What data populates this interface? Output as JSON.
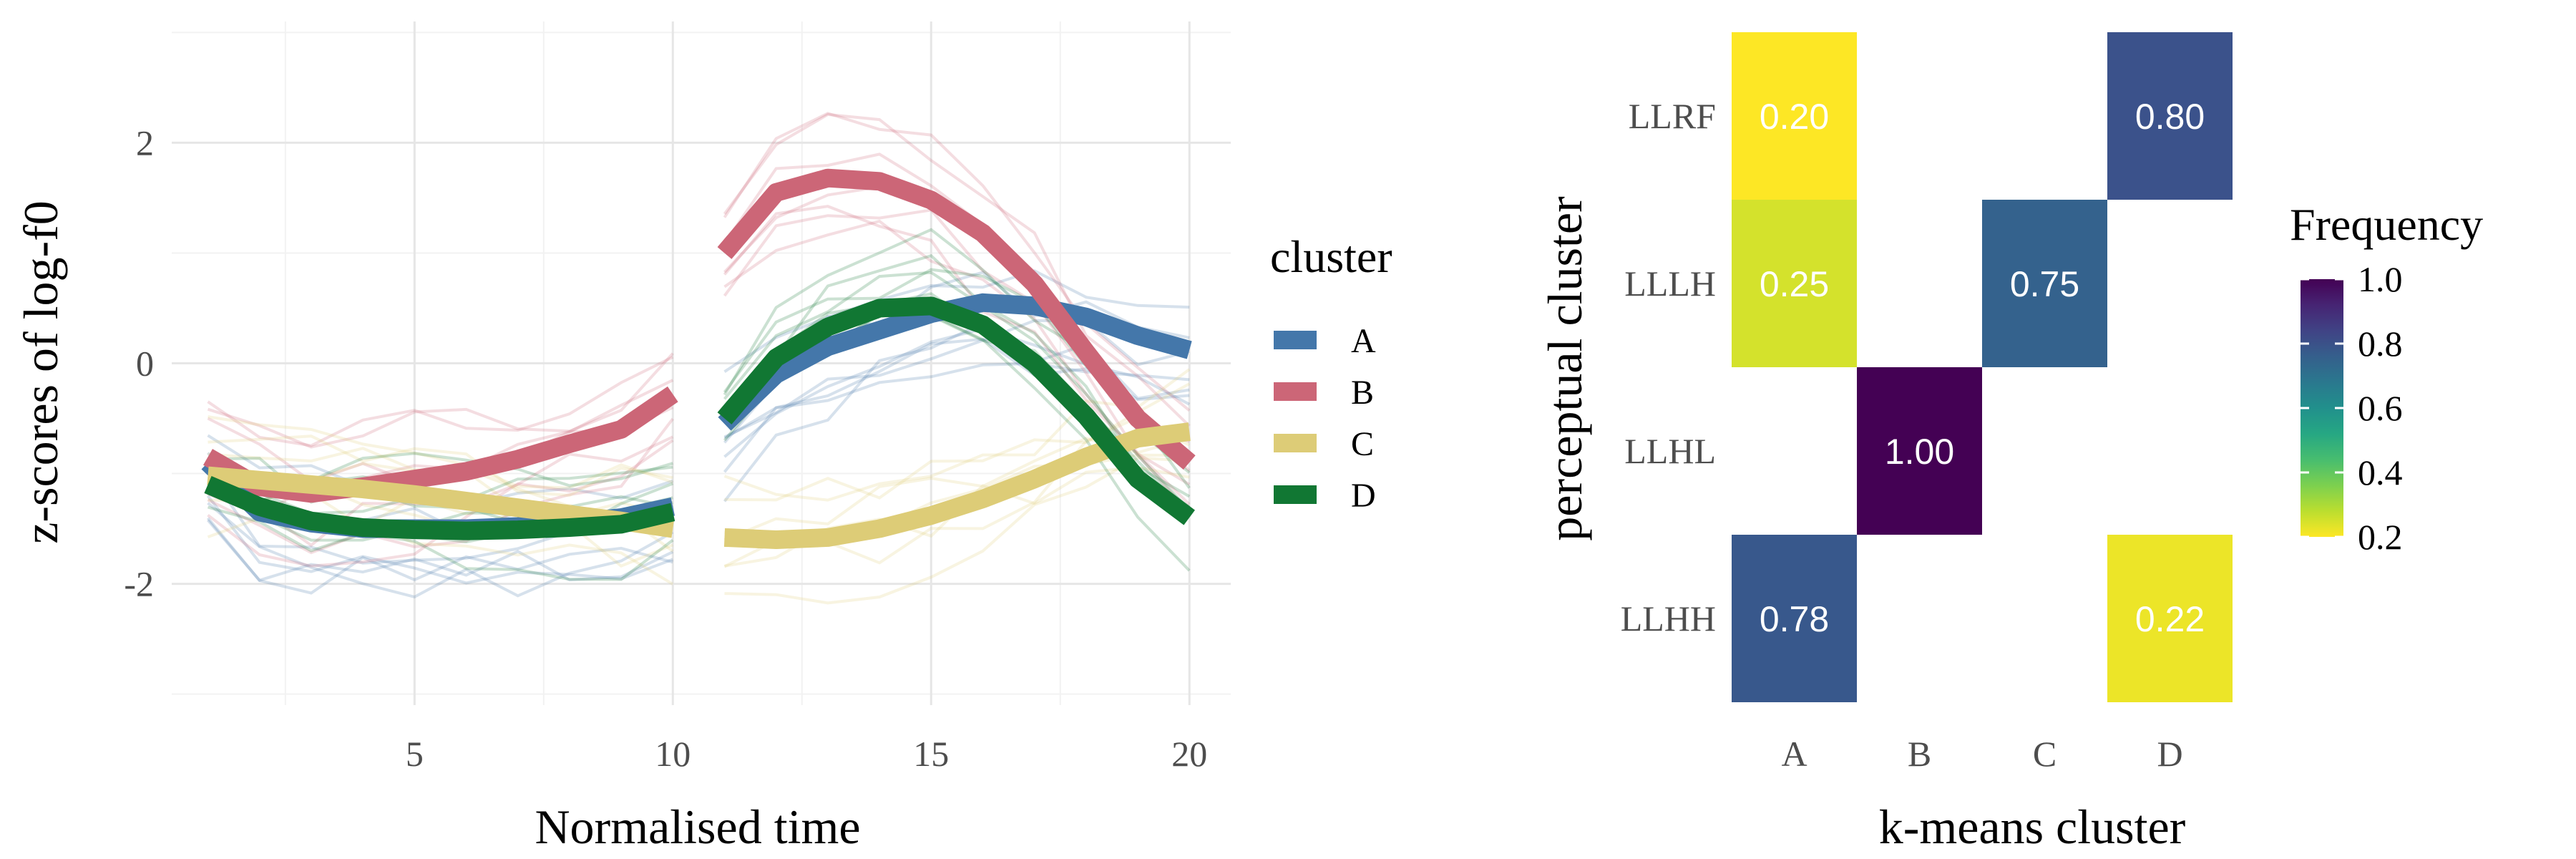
{
  "chart_data": [
    {
      "type": "line",
      "xlabel": "Normalised time",
      "ylabel": "z-scores of log-f0",
      "xlim": [
        0.3,
        20.8
      ],
      "ylim": [
        -3.1,
        3.1
      ],
      "x_ticks": [
        5,
        10,
        15,
        20
      ],
      "y_ticks": [
        -2,
        0,
        2
      ],
      "y_tick_labels": [
        "-2",
        "0",
        "2"
      ],
      "grid": true,
      "legend": {
        "title": "cluster",
        "position": "right"
      },
      "segments": [
        [
          1,
          10
        ],
        [
          11,
          20
        ]
      ],
      "series": [
        {
          "name": "A",
          "color": "#4477AA",
          "x": [
            1,
            2,
            3,
            4,
            5,
            6,
            7,
            8,
            9,
            10,
            11,
            12,
            13,
            14,
            15,
            16,
            17,
            18,
            19,
            20
          ],
          "values": [
            -0.9,
            -1.35,
            -1.45,
            -1.5,
            -1.5,
            -1.5,
            -1.48,
            -1.45,
            -1.4,
            -1.3,
            -0.55,
            -0.1,
            0.15,
            0.3,
            0.45,
            0.55,
            0.52,
            0.42,
            0.25,
            0.12
          ]
        },
        {
          "name": "B",
          "color": "#CC6677",
          "x": [
            1,
            2,
            3,
            4,
            5,
            6,
            7,
            8,
            9,
            10,
            11,
            12,
            13,
            14,
            15,
            16,
            17,
            18,
            19,
            20
          ],
          "values": [
            -0.85,
            -1.12,
            -1.18,
            -1.12,
            -1.05,
            -0.98,
            -0.87,
            -0.73,
            -0.6,
            -0.28,
            1.0,
            1.55,
            1.68,
            1.65,
            1.48,
            1.18,
            0.72,
            0.1,
            -0.5,
            -0.9
          ]
        },
        {
          "name": "C",
          "color": "#DDCC77",
          "x": [
            1,
            2,
            3,
            4,
            5,
            6,
            7,
            8,
            9,
            10,
            11,
            12,
            13,
            14,
            15,
            16,
            17,
            18,
            19,
            20
          ],
          "values": [
            -1.02,
            -1.06,
            -1.1,
            -1.14,
            -1.19,
            -1.25,
            -1.31,
            -1.37,
            -1.43,
            -1.5,
            -1.58,
            -1.6,
            -1.58,
            -1.5,
            -1.38,
            -1.23,
            -1.05,
            -0.85,
            -0.68,
            -0.62
          ]
        },
        {
          "name": "D",
          "color": "#117733",
          "x": [
            1,
            2,
            3,
            4,
            5,
            6,
            7,
            8,
            9,
            10,
            11,
            12,
            13,
            14,
            15,
            16,
            17,
            18,
            19,
            20
          ],
          "values": [
            -1.1,
            -1.3,
            -1.43,
            -1.49,
            -1.51,
            -1.52,
            -1.51,
            -1.49,
            -1.46,
            -1.35,
            -0.5,
            0.05,
            0.33,
            0.5,
            0.52,
            0.35,
            0.0,
            -0.48,
            -1.05,
            -1.4
          ]
        }
      ]
    },
    {
      "type": "heatmap",
      "xlabel": "k-means cluster",
      "ylabel": "perceptual cluster",
      "x_categories": [
        "A",
        "B",
        "C",
        "D"
      ],
      "y_categories": [
        "LLRF",
        "LLLH",
        "LLHL",
        "LLHH"
      ],
      "cells": [
        {
          "x": "A",
          "y": "LLRF",
          "value": 0.2,
          "label": "0.20"
        },
        {
          "x": "D",
          "y": "LLRF",
          "value": 0.8,
          "label": "0.80"
        },
        {
          "x": "A",
          "y": "LLLH",
          "value": 0.25,
          "label": "0.25"
        },
        {
          "x": "C",
          "y": "LLLH",
          "value": 0.75,
          "label": "0.75"
        },
        {
          "x": "B",
          "y": "LLHL",
          "value": 1.0,
          "label": "1.00"
        },
        {
          "x": "A",
          "y": "LLHH",
          "value": 0.78,
          "label": "0.78"
        },
        {
          "x": "D",
          "y": "LLHH",
          "value": 0.22,
          "label": "0.22"
        }
      ],
      "legend": {
        "title": "Frequency",
        "position": "right",
        "range": [
          0.2,
          1.0
        ],
        "ticks": [
          1.0,
          0.8,
          0.6,
          0.4,
          0.2
        ],
        "tick_labels": [
          "1.0",
          "0.8",
          "0.6",
          "0.4",
          "0.2"
        ]
      },
      "colormap": "viridis-reversed"
    }
  ]
}
